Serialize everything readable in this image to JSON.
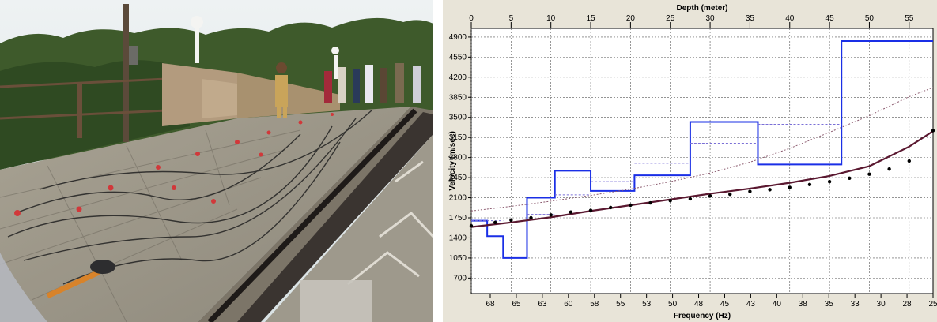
{
  "photo": {
    "subject": "field-survey-photo-dam-parapet-with-geophones"
  },
  "chart_data": {
    "type": "line",
    "top_axis": {
      "label": "Depth (meter)",
      "ticks": [
        0,
        5,
        10,
        15,
        20,
        25,
        30,
        35,
        40,
        45,
        50,
        55
      ],
      "range": [
        0,
        58
      ]
    },
    "bottom_axis": {
      "label": "Frequency (Hz)",
      "ticks": [
        68,
        65,
        63,
        60,
        58,
        55,
        53,
        50,
        48,
        45,
        43,
        40,
        38,
        35,
        33,
        30,
        28,
        25
      ]
    },
    "y_axis": {
      "label": "Velocity (m/sec)",
      "ticks": [
        700,
        1050,
        1400,
        1750,
        2100,
        2450,
        2800,
        3150,
        3500,
        3850,
        4200,
        4550,
        4900
      ],
      "range": [
        430,
        5050
      ]
    },
    "grid": true,
    "series": [
      {
        "role": "shear-velocity-profile",
        "color": "#1a2fe6",
        "steps": [
          {
            "d0": 0,
            "d1": 2,
            "v": 1700
          },
          {
            "d0": 2,
            "d1": 4,
            "v": 1430
          },
          {
            "d0": 4,
            "d1": 7,
            "v": 1050
          },
          {
            "d0": 7,
            "d1": 10.5,
            "v": 2100
          },
          {
            "d0": 10.5,
            "d1": 15,
            "v": 2570
          },
          {
            "d0": 15,
            "d1": 20.5,
            "v": 2220
          },
          {
            "d0": 20.5,
            "d1": 27.5,
            "v": 2490
          },
          {
            "d0": 27.5,
            "d1": 36,
            "v": 3420
          },
          {
            "d0": 36,
            "d1": 46.5,
            "v": 2680
          },
          {
            "d0": 46.5,
            "d1": 58,
            "v": 4830
          }
        ]
      },
      {
        "role": "initial-model-dashed",
        "color": "#7a6fd6",
        "steps": [
          {
            "d0": 0,
            "d1": 4,
            "v": 1700
          },
          {
            "d0": 7,
            "d1": 10.5,
            "v": 1810
          },
          {
            "d0": 10.5,
            "d1": 15,
            "v": 2150
          },
          {
            "d0": 15,
            "d1": 20.5,
            "v": 2380
          },
          {
            "d0": 20.5,
            "d1": 27.5,
            "v": 2700
          },
          {
            "d0": 27.5,
            "d1": 36,
            "v": 3050
          },
          {
            "d0": 36,
            "d1": 46.5,
            "v": 3380
          }
        ]
      },
      {
        "role": "theoretical-dispersion-dotted",
        "color": "#8b5a6e",
        "points": [
          [
            0,
            1870
          ],
          [
            5,
            1950
          ],
          [
            10,
            2040
          ],
          [
            15,
            2140
          ],
          [
            20,
            2250
          ],
          [
            25,
            2380
          ],
          [
            30,
            2530
          ],
          [
            35,
            2720
          ],
          [
            40,
            2960
          ],
          [
            45,
            3240
          ],
          [
            50,
            3530
          ],
          [
            55,
            3860
          ],
          [
            58,
            4020
          ]
        ]
      },
      {
        "role": "fitted-dispersion-curve",
        "color": "#5a1830",
        "points": [
          [
            0,
            1590
          ],
          [
            5,
            1670
          ],
          [
            10,
            1760
          ],
          [
            15,
            1870
          ],
          [
            20,
            1970
          ],
          [
            25,
            2070
          ],
          [
            30,
            2170
          ],
          [
            35,
            2260
          ],
          [
            40,
            2360
          ],
          [
            45,
            2480
          ],
          [
            50,
            2650
          ],
          [
            55,
            2990
          ],
          [
            58,
            3260
          ]
        ]
      },
      {
        "role": "measured-dispersion-points",
        "color": "#000000",
        "points": [
          [
            0,
            1610
          ],
          [
            3,
            1670
          ],
          [
            5,
            1710
          ],
          [
            7.5,
            1750
          ],
          [
            10,
            1800
          ],
          [
            12.5,
            1850
          ],
          [
            15,
            1880
          ],
          [
            17.5,
            1930
          ],
          [
            20,
            1970
          ],
          [
            22.5,
            2010
          ],
          [
            25,
            2050
          ],
          [
            27.5,
            2080
          ],
          [
            30,
            2130
          ],
          [
            32.5,
            2160
          ],
          [
            35,
            2210
          ],
          [
            37.5,
            2240
          ],
          [
            40,
            2280
          ],
          [
            42.5,
            2330
          ],
          [
            45,
            2380
          ],
          [
            47.5,
            2440
          ],
          [
            50,
            2510
          ],
          [
            52.5,
            2600
          ],
          [
            55,
            2740
          ],
          [
            58,
            3270
          ]
        ]
      }
    ]
  }
}
